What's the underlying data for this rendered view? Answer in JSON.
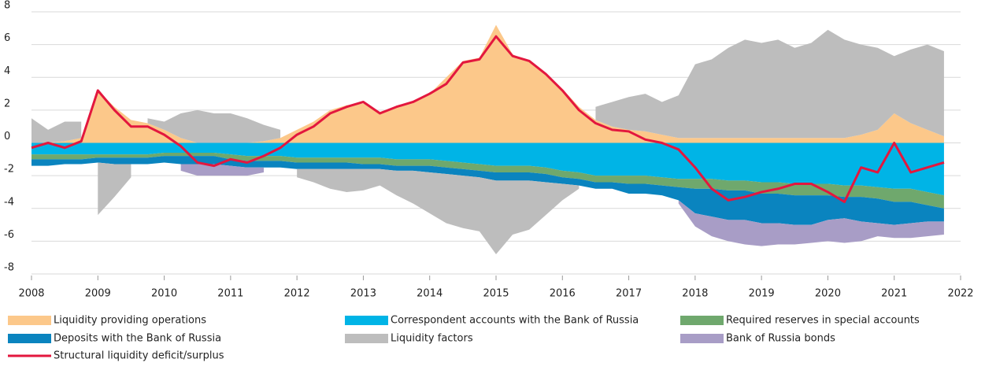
{
  "chart_data": {
    "type": "stacked-area",
    "x": [
      2008,
      2008.25,
      2008.5,
      2008.75,
      2009,
      2009.25,
      2009.5,
      2009.75,
      2010,
      2010.25,
      2010.5,
      2010.75,
      2011,
      2011.25,
      2011.5,
      2011.75,
      2012,
      2012.25,
      2012.5,
      2012.75,
      2013,
      2013.25,
      2013.5,
      2013.75,
      2014,
      2014.25,
      2014.5,
      2014.75,
      2015,
      2015.25,
      2015.5,
      2015.75,
      2016,
      2016.25,
      2016.5,
      2016.75,
      2017,
      2017.25,
      2017.5,
      2017.75,
      2018,
      2018.25,
      2018.5,
      2018.75,
      2019,
      2019.25,
      2019.5,
      2019.75,
      2020,
      2020.25,
      2020.5,
      2020.75,
      2021,
      2021.25,
      2021.5,
      2021.75
    ],
    "xlim": [
      2008,
      2022
    ],
    "xticks": [
      2008,
      2009,
      2010,
      2011,
      2012,
      2013,
      2014,
      2015,
      2016,
      2017,
      2018,
      2019,
      2020,
      2021,
      2022
    ],
    "ylim": [
      -8,
      8
    ],
    "yticks": [
      -8,
      -6,
      -4,
      -2,
      0,
      2,
      4,
      6,
      8
    ],
    "grid": true,
    "series": [
      {
        "name": "Liquidity providing operations",
        "color": "#fcc88a",
        "kind": "area",
        "values": [
          0,
          0,
          0.1,
          0.3,
          3.2,
          2.2,
          1.4,
          1.2,
          0.8,
          0.3,
          0,
          0,
          0,
          0,
          0.1,
          0.3,
          0.8,
          1.3,
          2.0,
          2.3,
          2.4,
          1.9,
          2.2,
          2.5,
          3.0,
          4.0,
          5.0,
          5.2,
          7.2,
          5.4,
          5.0,
          4.2,
          3.3,
          2.2,
          1.4,
          1.0,
          0.8,
          0.7,
          0.5,
          0.3,
          0.3,
          0.3,
          0.3,
          0.3,
          0.3,
          0.3,
          0.3,
          0.3,
          0.3,
          0.3,
          0.5,
          0.8,
          1.8,
          1.2,
          0.8,
          0.4
        ]
      },
      {
        "name": "Correspondent accounts with the Bank of Russia",
        "color": "#00b4e6",
        "kind": "area",
        "values": [
          -0.7,
          -0.7,
          -0.7,
          -0.7,
          -0.7,
          -0.7,
          -0.7,
          -0.7,
          -0.6,
          -0.6,
          -0.6,
          -0.6,
          -0.7,
          -0.8,
          -0.8,
          -0.8,
          -0.9,
          -0.9,
          -0.9,
          -0.9,
          -0.9,
          -0.9,
          -1.0,
          -1.0,
          -1.0,
          -1.1,
          -1.2,
          -1.3,
          -1.4,
          -1.4,
          -1.4,
          -1.5,
          -1.7,
          -1.8,
          -2.0,
          -2.0,
          -2.0,
          -2.0,
          -2.1,
          -2.2,
          -2.2,
          -2.2,
          -2.3,
          -2.3,
          -2.4,
          -2.4,
          -2.5,
          -2.5,
          -2.5,
          -2.6,
          -2.6,
          -2.7,
          -2.8,
          -2.8,
          -3.0,
          -3.2
        ]
      },
      {
        "name": "Required reserves in special accounts",
        "color": "#6fa86d",
        "kind": "area",
        "values": [
          -0.3,
          -0.3,
          -0.3,
          -0.3,
          -0.2,
          -0.2,
          -0.2,
          -0.2,
          -0.2,
          -0.2,
          -0.2,
          -0.2,
          -0.3,
          -0.3,
          -0.3,
          -0.3,
          -0.3,
          -0.3,
          -0.3,
          -0.3,
          -0.4,
          -0.4,
          -0.4,
          -0.4,
          -0.4,
          -0.4,
          -0.4,
          -0.4,
          -0.4,
          -0.4,
          -0.4,
          -0.4,
          -0.4,
          -0.4,
          -0.4,
          -0.4,
          -0.5,
          -0.5,
          -0.5,
          -0.5,
          -0.6,
          -0.6,
          -0.6,
          -0.6,
          -0.7,
          -0.7,
          -0.7,
          -0.7,
          -0.7,
          -0.7,
          -0.7,
          -0.7,
          -0.8,
          -0.8,
          -0.8,
          -0.8
        ]
      },
      {
        "name": "Deposits with the Bank of Russia",
        "color": "#0a84bf",
        "kind": "area",
        "values": [
          -0.4,
          -0.4,
          -0.3,
          -0.3,
          -0.3,
          -0.4,
          -0.4,
          -0.4,
          -0.4,
          -0.5,
          -0.5,
          -0.5,
          -0.4,
          -0.4,
          -0.4,
          -0.4,
          -0.4,
          -0.4,
          -0.4,
          -0.4,
          -0.3,
          -0.3,
          -0.3,
          -0.3,
          -0.4,
          -0.4,
          -0.4,
          -0.4,
          -0.5,
          -0.5,
          -0.5,
          -0.5,
          -0.4,
          -0.4,
          -0.4,
          -0.4,
          -0.6,
          -0.6,
          -0.6,
          -0.8,
          -1.5,
          -1.7,
          -1.8,
          -1.8,
          -1.8,
          -1.8,
          -1.8,
          -1.8,
          -1.5,
          -1.3,
          -1.5,
          -1.5,
          -1.4,
          -1.3,
          -1.0,
          -0.8
        ]
      },
      {
        "name": "Liquidity factors",
        "color": "#bdbdbd",
        "kind": "area",
        "values": [
          1.5,
          0.8,
          1.2,
          1.0,
          -3.2,
          -2.0,
          -0.8,
          0.3,
          0.5,
          1.5,
          2.0,
          1.8,
          1.8,
          1.5,
          1.0,
          0.5,
          -0.5,
          -0.8,
          -1.2,
          -1.4,
          -1.3,
          -1.0,
          -1.5,
          -2.0,
          -2.5,
          -3.0,
          -3.2,
          -3.3,
          -4.5,
          -3.3,
          -3.0,
          -2.0,
          -1.0,
          -0.2,
          0.8,
          1.5,
          2.0,
          2.3,
          2.0,
          2.6,
          4.5,
          4.8,
          5.5,
          6.0,
          5.8,
          6.0,
          5.5,
          5.8,
          6.6,
          6.0,
          5.5,
          5.0,
          3.5,
          4.5,
          5.2,
          5.2
        ]
      },
      {
        "name": "Bank of Russia bonds",
        "color": "#a89dc6",
        "kind": "area",
        "values": [
          0,
          0,
          0,
          0,
          0,
          0,
          0,
          0,
          0,
          -0.4,
          -0.7,
          -0.7,
          -0.6,
          -0.5,
          -0.3,
          0,
          0,
          0,
          0,
          0,
          0,
          0,
          0,
          0,
          0,
          0,
          0,
          0,
          0,
          0,
          0,
          0,
          0,
          0,
          0,
          0,
          0,
          0,
          0,
          -0.2,
          -0.8,
          -1.2,
          -1.3,
          -1.5,
          -1.4,
          -1.3,
          -1.2,
          -1.1,
          -1.3,
          -1.5,
          -1.2,
          -0.8,
          -0.8,
          -0.9,
          -0.9,
          -0.8
        ]
      },
      {
        "name": "Structural liquidity deficit/surplus",
        "color": "#e3173e",
        "kind": "line",
        "values": [
          -0.3,
          0.0,
          -0.3,
          0.1,
          3.2,
          2.0,
          1.0,
          1.0,
          0.5,
          -0.2,
          -1.2,
          -1.4,
          -1.0,
          -1.2,
          -0.8,
          -0.3,
          0.5,
          1.0,
          1.8,
          2.2,
          2.5,
          1.8,
          2.2,
          2.5,
          3.0,
          3.6,
          4.9,
          5.1,
          6.5,
          5.3,
          5.0,
          4.2,
          3.2,
          2.0,
          1.2,
          0.8,
          0.7,
          0.2,
          0.0,
          -0.4,
          -1.5,
          -2.8,
          -3.5,
          -3.3,
          -3.0,
          -2.8,
          -2.5,
          -2.5,
          -3.0,
          -3.6,
          -1.5,
          -1.8,
          0.0,
          -1.8,
          -1.5,
          -1.2
        ]
      }
    ]
  }
}
